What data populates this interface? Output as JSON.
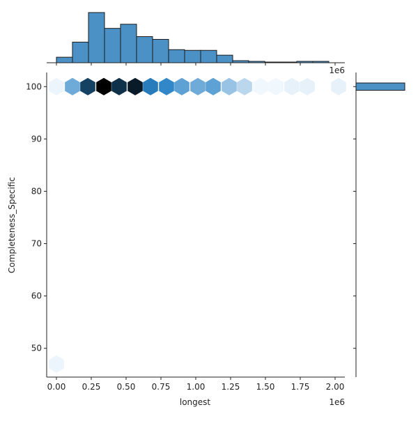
{
  "chart_data": {
    "type": "hexbin-joint",
    "xlabel": "longest",
    "ylabel": "Completeness_Specific",
    "x_offset_text": "1e6",
    "xlim": [
      -0.07,
      2.07
    ],
    "ylim": [
      44.5,
      102.7
    ],
    "x_ticks": [
      0.0,
      0.25,
      0.5,
      0.75,
      1.0,
      1.25,
      1.5,
      1.75,
      2.0
    ],
    "x_tick_labels": [
      "0.00",
      "0.25",
      "0.50",
      "0.75",
      "1.00",
      "1.25",
      "1.50",
      "1.75",
      "2.00"
    ],
    "y_ticks": [
      50,
      60,
      70,
      80,
      90,
      100
    ],
    "y_tick_labels": [
      "50",
      "60",
      "70",
      "80",
      "90",
      "100"
    ],
    "hexbins": [
      {
        "x": 0.0,
        "y": 100,
        "density": 0.03
      },
      {
        "x": 0.115,
        "y": 100,
        "density": 0.4
      },
      {
        "x": 0.225,
        "y": 100,
        "density": 0.8
      },
      {
        "x": 0.34,
        "y": 100,
        "density": 1.0
      },
      {
        "x": 0.45,
        "y": 100,
        "density": 0.85
      },
      {
        "x": 0.565,
        "y": 100,
        "density": 0.92
      },
      {
        "x": 0.675,
        "y": 100,
        "density": 0.62
      },
      {
        "x": 0.79,
        "y": 100,
        "density": 0.58
      },
      {
        "x": 0.9,
        "y": 100,
        "density": 0.45
      },
      {
        "x": 1.015,
        "y": 100,
        "density": 0.4
      },
      {
        "x": 1.125,
        "y": 100,
        "density": 0.45
      },
      {
        "x": 1.24,
        "y": 100,
        "density": 0.28
      },
      {
        "x": 1.35,
        "y": 100,
        "density": 0.18
      },
      {
        "x": 1.465,
        "y": 100,
        "density": 0.02
      },
      {
        "x": 1.575,
        "y": 100,
        "density": 0.02
      },
      {
        "x": 1.69,
        "y": 100,
        "density": 0.05
      },
      {
        "x": 1.8,
        "y": 100,
        "density": 0.05
      },
      {
        "x": 2.025,
        "y": 100,
        "density": 0.05
      },
      {
        "x": 0.0,
        "y": 47,
        "density": 0.03
      }
    ],
    "marginal_x": {
      "bin_edges": [
        0.0,
        0.115,
        0.23,
        0.345,
        0.46,
        0.575,
        0.69,
        0.805,
        0.92,
        1.035,
        1.15,
        1.265,
        1.38,
        1.495,
        1.61,
        1.725,
        1.84,
        1.955,
        2.07
      ],
      "counts": [
        8,
        30,
        73,
        50,
        56,
        38,
        34,
        19,
        18,
        18,
        11,
        3,
        2,
        1,
        1,
        2,
        2,
        0
      ],
      "color": "#4c91c6"
    },
    "marginal_y": {
      "bin_edges": [
        99.3,
        100.7
      ],
      "counts": [
        1
      ],
      "color": "#4c91c6"
    },
    "colors": {
      "hex_low": "#f7fbff",
      "hex_mid": "#2b83c6",
      "hex_high": "#000000",
      "bar_fill": "#4c91c6",
      "bar_edge": "#1a1a1a"
    }
  }
}
